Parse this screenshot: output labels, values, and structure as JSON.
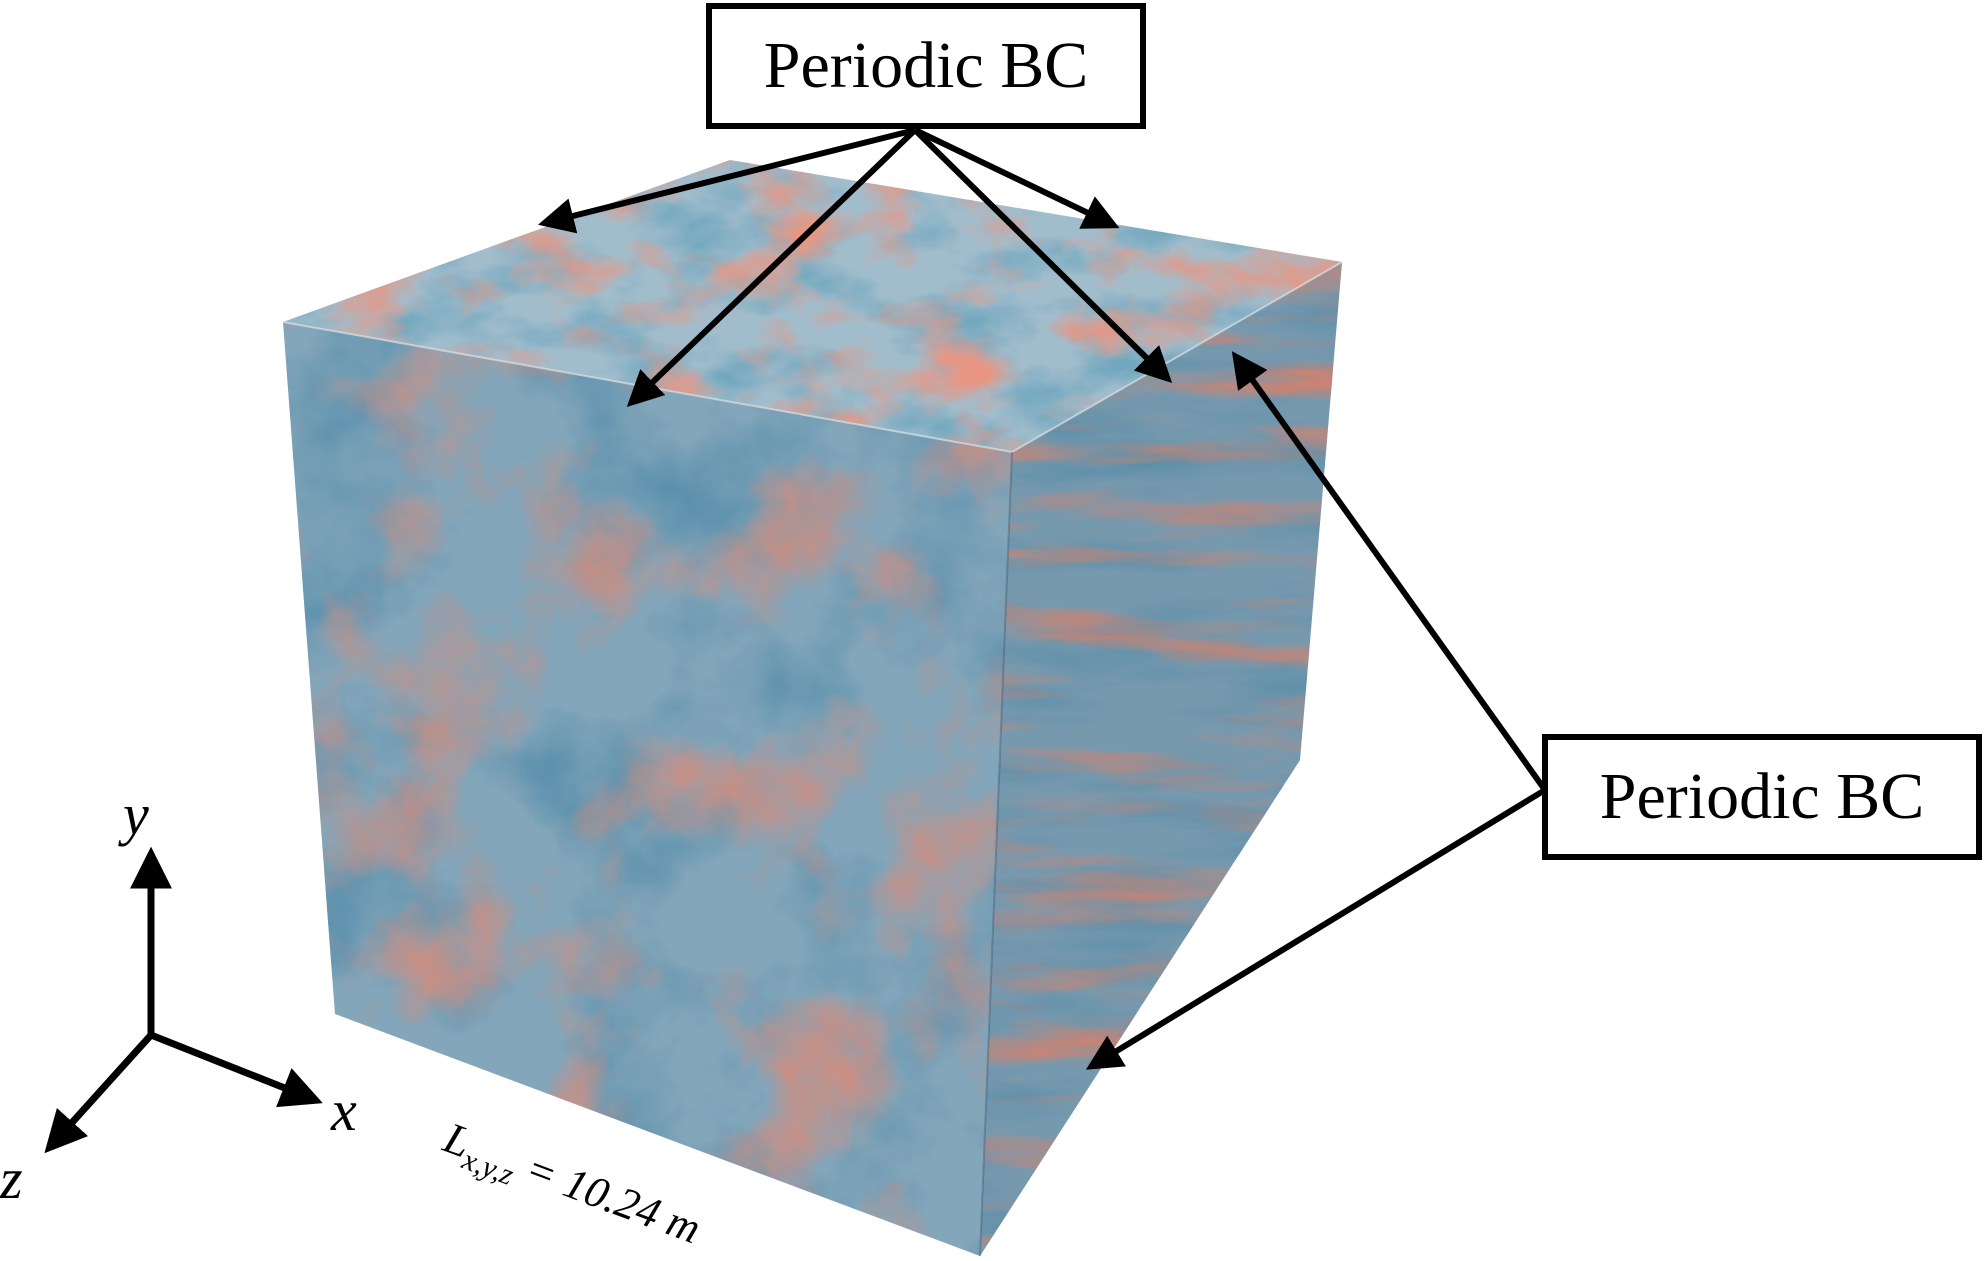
{
  "labels": {
    "top_callout": "Periodic BC",
    "right_callout": "Periodic BC"
  },
  "axes": {
    "x": "x",
    "y": "y",
    "z": "z"
  },
  "dimension": "L_{x,y,z} = 10.24 m",
  "colors": {
    "field_blue_dark": "#1f4f73",
    "field_blue_mid": "#4f88a8",
    "field_neutral": "#c9d3d6",
    "field_red": "#c8452f",
    "outline": "#000000"
  }
}
